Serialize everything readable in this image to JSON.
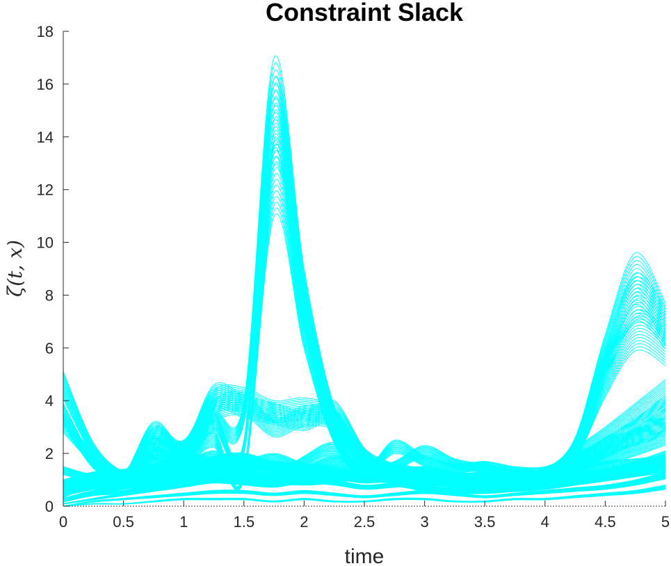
{
  "chart_data": {
    "type": "line",
    "title": "Constraint Slack",
    "xlabel": "time",
    "ylabel": "ζ(t, x)",
    "xlim": [
      0,
      5
    ],
    "ylim": [
      0,
      18
    ],
    "xticks": [
      0,
      0.5,
      1,
      1.5,
      2,
      2.5,
      3,
      3.5,
      4,
      4.5,
      5
    ],
    "xtick_labels": [
      "0",
      "0.5",
      "1",
      "1.5",
      "2",
      "2.5",
      "3",
      "3.5",
      "4",
      "4.5",
      "5"
    ],
    "yticks": [
      0,
      2,
      4,
      6,
      8,
      10,
      12,
      14,
      16,
      18
    ],
    "ytick_labels": [
      "0",
      "2",
      "4",
      "6",
      "8",
      "10",
      "12",
      "14",
      "16",
      "18"
    ],
    "grid": false,
    "legend": "none",
    "series_color": "#00FFFF",
    "x": [
      0,
      0.25,
      0.5,
      0.75,
      1,
      1.25,
      1.5,
      1.75,
      2,
      2.25,
      2.5,
      2.75,
      3,
      3.25,
      3.5,
      3.75,
      4,
      4.25,
      4.5,
      4.75,
      5
    ],
    "series": [
      {
        "values": [
          5.1,
          2.4,
          1.3,
          1.2,
          1.4,
          1.9,
          2.0,
          1.5,
          1.2,
          1.3,
          1.5,
          1.6,
          1.4,
          1.2,
          1.2,
          1.1,
          1.2,
          1.5,
          1.7,
          1.8,
          1.9
        ]
      },
      {
        "values": [
          3.9,
          1.8,
          1.0,
          1.1,
          1.2,
          1.4,
          1.2,
          1.0,
          1.3,
          1.4,
          1.2,
          1.1,
          1.0,
          1.0,
          1.1,
          1.2,
          1.4,
          2.2,
          3.0,
          3.9,
          4.8
        ]
      },
      {
        "values": [
          3.5,
          2.0,
          1.1,
          1.0,
          1.0,
          1.2,
          1.3,
          1.1,
          1.0,
          1.1,
          1.3,
          1.2,
          1.1,
          1.2,
          1.3,
          1.2,
          1.3,
          1.9,
          2.6,
          3.3,
          4.2
        ]
      },
      {
        "values": [
          1.5,
          1.2,
          1.3,
          1.6,
          2.0,
          1.8,
          1.4,
          1.2,
          1.5,
          1.9,
          1.5,
          1.1,
          1.0,
          1.1,
          1.0,
          0.9,
          1.0,
          1.5,
          2.3,
          3.0,
          3.7
        ]
      },
      {
        "values": [
          0.6,
          0.9,
          1.3,
          2.6,
          2.2,
          4.0,
          4.3,
          3.3,
          3.8,
          3.6,
          1.8,
          1.0,
          0.8,
          0.7,
          0.8,
          0.9,
          1.0,
          1.2,
          1.4,
          1.7,
          2.1
        ]
      },
      {
        "values": [
          0.4,
          1.0,
          1.2,
          3.2,
          2.4,
          4.6,
          4.2,
          3.9,
          3.6,
          4.0,
          2.2,
          1.2,
          0.8,
          0.6,
          0.7,
          0.8,
          0.9,
          1.1,
          1.3,
          1.6,
          1.9
        ]
      },
      {
        "values": [
          0.5,
          0.8,
          1.1,
          3.0,
          2.5,
          4.4,
          4.5,
          4.0,
          4.1,
          3.7,
          2.0,
          1.1,
          0.7,
          0.6,
          0.6,
          0.7,
          0.8,
          1.0,
          1.2,
          1.5,
          1.8
        ]
      },
      {
        "values": [
          0.5,
          1.0,
          1.3,
          2.4,
          2.5,
          3.6,
          4.0,
          17.0,
          9.0,
          3.8,
          2.2,
          1.6,
          1.3,
          1.1,
          1.0,
          1.1,
          1.2,
          1.3,
          1.4,
          1.6,
          1.8
        ]
      },
      {
        "values": [
          0.8,
          1.1,
          1.2,
          2.2,
          2.0,
          3.5,
          2.5,
          16.2,
          8.5,
          3.6,
          1.9,
          1.5,
          1.4,
          1.2,
          1.1,
          1.2,
          1.1,
          1.2,
          1.3,
          1.5,
          1.7
        ]
      },
      {
        "values": [
          0.6,
          0.9,
          1.0,
          1.9,
          1.9,
          2.8,
          1.3,
          13.8,
          7.5,
          3.0,
          1.6,
          1.3,
          1.2,
          1.0,
          1.0,
          1.0,
          1.1,
          1.1,
          1.2,
          1.4,
          1.6
        ]
      },
      {
        "values": [
          1.0,
          1.3,
          1.4,
          1.5,
          1.6,
          1.8,
          2.0,
          1.7,
          1.6,
          1.5,
          1.3,
          1.4,
          1.5,
          1.3,
          1.2,
          1.0,
          1.4,
          2.6,
          6.5,
          9.6,
          7.7
        ]
      },
      {
        "values": [
          0.9,
          1.2,
          1.3,
          1.4,
          1.5,
          1.6,
          1.8,
          1.6,
          1.5,
          1.4,
          1.2,
          1.3,
          1.4,
          1.2,
          1.1,
          1.0,
          1.3,
          2.4,
          6.0,
          8.8,
          7.5
        ]
      },
      {
        "values": [
          0.8,
          1.0,
          1.2,
          1.3,
          1.4,
          1.5,
          1.6,
          1.5,
          1.4,
          1.3,
          1.1,
          1.2,
          1.3,
          1.1,
          1.0,
          0.9,
          1.2,
          2.2,
          5.2,
          7.4,
          6.7
        ]
      },
      {
        "values": [
          0.3,
          0.6,
          0.8,
          1.0,
          1.6,
          2.1,
          1.5,
          1.2,
          1.9,
          2.4,
          1.4,
          2.5,
          1.9,
          1.6,
          1.7,
          1.5,
          1.5,
          2.0,
          2.5,
          2.9,
          3.4
        ]
      },
      {
        "values": [
          0.2,
          0.5,
          0.6,
          0.8,
          1.2,
          1.4,
          1.7,
          2.0,
          1.6,
          1.2,
          1.4,
          1.7,
          2.3,
          1.8,
          1.6,
          1.4,
          1.3,
          1.7,
          2.0,
          2.4,
          2.9
        ]
      },
      {
        "values": [
          0.1,
          0.3,
          0.5,
          0.7,
          0.9,
          1.1,
          1.0,
          0.9,
          1.1,
          1.0,
          0.8,
          0.9,
          1.0,
          0.9,
          0.8,
          0.7,
          0.8,
          1.0,
          1.2,
          1.5,
          2.0
        ]
      },
      {
        "values": [
          0.0,
          0.2,
          0.3,
          0.4,
          0.5,
          0.6,
          0.6,
          0.5,
          0.6,
          0.5,
          0.4,
          0.5,
          0.6,
          0.5,
          0.4,
          0.5,
          0.6,
          0.7,
          0.8,
          1.0,
          1.3
        ]
      },
      {
        "values": [
          0.0,
          0.1,
          0.1,
          0.2,
          0.3,
          0.3,
          0.3,
          0.2,
          0.3,
          0.2,
          0.2,
          0.3,
          0.3,
          0.2,
          0.2,
          0.3,
          0.3,
          0.4,
          0.5,
          0.6,
          0.8
        ]
      }
    ]
  }
}
